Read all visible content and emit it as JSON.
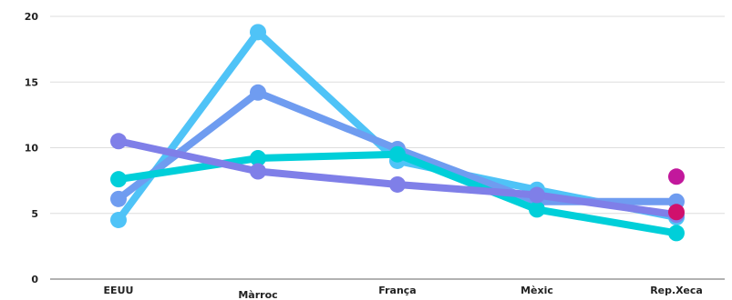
{
  "chart_data": {
    "type": "line",
    "title": "",
    "xlabel": "",
    "ylabel": "",
    "categories": [
      "EEUU",
      "Màrroc",
      "França",
      "Mèxic",
      "Rep.Xeca"
    ],
    "ylim": [
      0,
      20
    ],
    "yticks": [
      "0",
      "5",
      "10",
      "15",
      "20"
    ],
    "grid": true,
    "legend": "none",
    "series": [
      {
        "color": "#4fc3f7",
        "values": [
          4.5,
          18.8,
          9.0,
          6.8,
          4.7
        ]
      },
      {
        "color": "#6f9cf0",
        "values": [
          6.1,
          14.2,
          9.9,
          5.9,
          5.9
        ]
      },
      {
        "color": "#00cfd9",
        "values": [
          7.6,
          9.2,
          9.5,
          5.3,
          3.5
        ]
      },
      {
        "color": "#7f7fe8",
        "values": [
          10.5,
          8.2,
          7.2,
          6.4,
          4.9
        ]
      }
    ],
    "points": [
      {
        "category": "Rep.Xeca",
        "value": 7.8,
        "color": "#c2189c"
      },
      {
        "category": "Rep.Xeca",
        "value": 5.1,
        "color": "#d1106c"
      }
    ]
  }
}
